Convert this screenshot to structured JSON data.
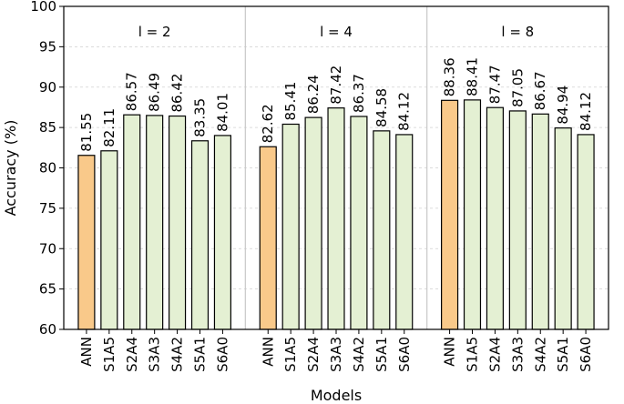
{
  "chart_data": {
    "type": "bar",
    "xlabel": "Models",
    "ylabel": "Accuracy (%)",
    "ylim": [
      60,
      100
    ],
    "yticks": [
      60,
      65,
      70,
      75,
      80,
      85,
      90,
      95,
      100
    ],
    "grid": "horizontal dashed",
    "categories": [
      "ANN",
      "S1A5",
      "S2A4",
      "S3A3",
      "S4A2",
      "S5A1",
      "S6A0"
    ],
    "colors": {
      "ann": "#f9c98a",
      "snn": "#e4f0d3",
      "edge": "#000000",
      "divider": "#c8c8c8"
    },
    "groups": [
      {
        "name": "l = 2",
        "values": [
          81.55,
          82.11,
          86.57,
          86.49,
          86.42,
          83.35,
          84.01
        ]
      },
      {
        "name": "l = 4",
        "values": [
          82.62,
          85.41,
          86.24,
          87.42,
          86.37,
          84.58,
          84.12
        ]
      },
      {
        "name": "l = 8",
        "values": [
          88.36,
          88.41,
          87.47,
          87.05,
          86.67,
          84.94,
          84.12
        ]
      }
    ]
  }
}
